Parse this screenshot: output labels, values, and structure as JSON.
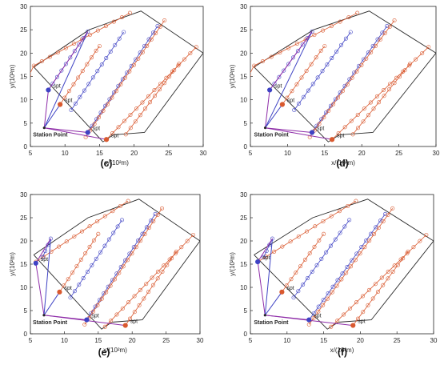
{
  "chart_data": [
    {
      "type": "line",
      "label": "(c)",
      "xlabel": "x/(10²m)",
      "ylabel": "y/(10²m)",
      "xlim": [
        5,
        30
      ],
      "ylim": [
        0,
        30
      ],
      "xticks": [
        "5",
        "10",
        "15",
        "20",
        "25",
        "30"
      ],
      "yticks": [
        "0",
        "5",
        "10",
        "15",
        "20",
        "25",
        "30"
      ],
      "grid": false,
      "station_label": "Station Point",
      "station": [
        7.0,
        4.0
      ],
      "boundary": [
        [
          5.5,
          17.0
        ],
        [
          13.5,
          25.0
        ],
        [
          21.0,
          29.0
        ],
        [
          30.0,
          20.0
        ],
        [
          21.5,
          3.0
        ],
        [
          17.0,
          2.5
        ],
        [
          15.5,
          1.0
        ],
        [
          5.5,
          17.0
        ]
      ],
      "strip_colors": [
        "#d9592f",
        "#3f43c4"
      ],
      "strips": [
        {
          "color": "#d9592f",
          "points": [
            [
              4.8,
              15.2
            ],
            [
              5.5,
              17.3
            ],
            [
              19.4,
              28.6
            ]
          ]
        },
        {
          "color": "#3f43c4",
          "points": [
            [
              7.6,
              12.1
            ],
            [
              13.3,
              24.6
            ]
          ]
        },
        {
          "color": "#d9592f",
          "points": [
            [
              9.3,
              9.0
            ],
            [
              14.5,
              20.5
            ],
            [
              15.0,
              21.5
            ]
          ]
        },
        {
          "color": "#3f43c4",
          "points": [
            [
              10.9,
              7.8
            ],
            [
              18.5,
              24.5
            ]
          ]
        },
        {
          "color": "#3f43c4",
          "points": [
            [
              13.3,
              3.0
            ],
            [
              23.4,
              25.8
            ]
          ]
        },
        {
          "color": "#d9592f",
          "points": [
            [
              13.0,
              2.0
            ],
            [
              18.7,
              14.7
            ],
            [
              24.4,
              27.0
            ]
          ]
        },
        {
          "color": "#d9592f",
          "points": [
            [
              16.0,
              1.5
            ],
            [
              29.0,
              21.3
            ]
          ]
        },
        {
          "color": "#d9592f",
          "points": [
            [
              18.8,
              2.6
            ],
            [
              26.5,
              17.7
            ]
          ]
        }
      ],
      "spt_points": [
        {
          "label": "spt",
          "x": 7.6,
          "y": 12.1,
          "color": "#3f43c4"
        },
        {
          "label": "spt",
          "x": 9.3,
          "y": 9.0,
          "color": "#d9592f"
        },
        {
          "label": "spt",
          "x": 13.3,
          "y": 3.0,
          "color": "#3f43c4"
        },
        {
          "label": "spt",
          "x": 16.0,
          "y": 1.5,
          "color": "#d9592f"
        }
      ],
      "paths": [
        {
          "color": "#8e2ca8",
          "points": [
            [
              7.0,
              4.0
            ],
            [
              13.3,
              3.0
            ]
          ]
        },
        {
          "color": "#8e2ca8",
          "points": [
            [
              7.0,
              4.0
            ],
            [
              16.0,
              1.5
            ]
          ]
        },
        {
          "color": "#8e2ca8",
          "points": [
            [
              7.0,
              4.0
            ],
            [
              7.6,
              12.1
            ]
          ]
        },
        {
          "color": "#3f43c4",
          "points": [
            [
              7.0,
              4.0
            ],
            [
              13.3,
              24.6
            ]
          ]
        },
        {
          "color": "#3f43c4",
          "points": [
            [
              7.0,
              4.0
            ],
            [
              9.3,
              9.0
            ]
          ]
        },
        {
          "color": "#8e2ca8",
          "points": [
            [
              7.6,
              12.1
            ],
            [
              13.3,
              24.6
            ]
          ]
        }
      ]
    },
    {
      "type": "line",
      "label": "(d)",
      "xlabel": "x/(10²m)",
      "ylabel": "y/(10²m)",
      "xlim": [
        5,
        30
      ],
      "ylim": [
        0,
        30
      ],
      "xticks": [
        "5",
        "10",
        "15",
        "20",
        "25",
        "30"
      ],
      "yticks": [
        "0",
        "5",
        "10",
        "15",
        "20",
        "25",
        "30"
      ],
      "grid": false,
      "station_label": "Station Point",
      "station": [
        7.0,
        4.0
      ],
      "boundary": [
        [
          5.5,
          17.0
        ],
        [
          13.5,
          25.0
        ],
        [
          21.0,
          29.0
        ],
        [
          30.0,
          20.0
        ],
        [
          21.5,
          3.0
        ],
        [
          17.0,
          2.5
        ],
        [
          15.5,
          1.0
        ],
        [
          5.5,
          17.0
        ]
      ],
      "strip_colors": [
        "#d9592f",
        "#3f43c4"
      ],
      "strips": [
        {
          "color": "#d9592f",
          "points": [
            [
              4.8,
              15.2
            ],
            [
              5.5,
              17.3
            ],
            [
              19.4,
              28.6
            ]
          ]
        },
        {
          "color": "#3f43c4",
          "points": [
            [
              7.6,
              12.1
            ],
            [
              13.3,
              24.6
            ]
          ]
        },
        {
          "color": "#d9592f",
          "points": [
            [
              9.3,
              9.0
            ],
            [
              14.5,
              20.5
            ],
            [
              15.0,
              21.5
            ]
          ]
        },
        {
          "color": "#3f43c4",
          "points": [
            [
              10.9,
              7.8
            ],
            [
              18.5,
              24.5
            ]
          ]
        },
        {
          "color": "#3f43c4",
          "points": [
            [
              13.3,
              3.0
            ],
            [
              23.4,
              25.8
            ]
          ]
        },
        {
          "color": "#d9592f",
          "points": [
            [
              13.0,
              2.0
            ],
            [
              18.7,
              14.7
            ],
            [
              24.4,
              27.0
            ]
          ]
        },
        {
          "color": "#d9592f",
          "points": [
            [
              16.0,
              1.5
            ],
            [
              29.0,
              21.3
            ]
          ]
        },
        {
          "color": "#d9592f",
          "points": [
            [
              18.8,
              2.6
            ],
            [
              26.5,
              17.7
            ]
          ]
        }
      ],
      "spt_points": [
        {
          "label": "spt",
          "x": 7.6,
          "y": 12.1,
          "color": "#3f43c4"
        },
        {
          "label": "spt",
          "x": 9.3,
          "y": 9.0,
          "color": "#d9592f"
        },
        {
          "label": "spt",
          "x": 13.3,
          "y": 3.0,
          "color": "#3f43c4"
        },
        {
          "label": "spt",
          "x": 16.0,
          "y": 1.5,
          "color": "#d9592f"
        }
      ],
      "paths": [
        {
          "color": "#8e2ca8",
          "points": [
            [
              7.0,
              4.0
            ],
            [
              13.3,
              3.0
            ]
          ]
        },
        {
          "color": "#8e2ca8",
          "points": [
            [
              7.0,
              4.0
            ],
            [
              16.0,
              1.5
            ]
          ]
        },
        {
          "color": "#8e2ca8",
          "points": [
            [
              7.0,
              4.0
            ],
            [
              7.6,
              12.1
            ]
          ]
        },
        {
          "color": "#3f43c4",
          "points": [
            [
              7.0,
              4.0
            ],
            [
              13.3,
              24.6
            ]
          ]
        },
        {
          "color": "#3f43c4",
          "points": [
            [
              7.0,
              4.0
            ],
            [
              9.3,
              9.0
            ]
          ]
        },
        {
          "color": "#8e2ca8",
          "points": [
            [
              7.6,
              12.1
            ],
            [
              13.3,
              24.6
            ]
          ]
        }
      ]
    },
    {
      "type": "line",
      "label": "(e)",
      "xlabel": "x/(10²m)",
      "ylabel": "y/(10²m)",
      "xlim": [
        5,
        30
      ],
      "ylim": [
        0,
        30
      ],
      "xticks": [
        "5",
        "10",
        "15",
        "20",
        "25",
        "30"
      ],
      "yticks": [
        "0",
        "5",
        "10",
        "15",
        "20",
        "25",
        "30"
      ],
      "grid": false,
      "station_label": "Station Point",
      "station": [
        7.0,
        4.0
      ],
      "boundary": [
        [
          5.5,
          17.0
        ],
        [
          13.5,
          25.0
        ],
        [
          21.0,
          29.0
        ],
        [
          30.0,
          20.0
        ],
        [
          21.5,
          3.0
        ],
        [
          17.0,
          2.5
        ],
        [
          15.5,
          1.0
        ],
        [
          5.5,
          17.0
        ]
      ],
      "strip_colors": [
        "#d9592f",
        "#3f43c4"
      ],
      "strips": [
        {
          "color": "#d9592f",
          "points": [
            [
              5.8,
              15.5
            ],
            [
              19.4,
              28.6
            ]
          ]
        },
        {
          "color": "#3f43c4",
          "points": [
            [
              8.0,
              20.5
            ],
            [
              6.8,
              16.5
            ]
          ]
        },
        {
          "color": "#d9592f",
          "points": [
            [
              9.3,
              9.0
            ],
            [
              15.0,
              21.5
            ]
          ]
        },
        {
          "color": "#3f43c4",
          "points": [
            [
              10.9,
              7.8
            ],
            [
              18.5,
              24.5
            ]
          ]
        },
        {
          "color": "#3f43c4",
          "points": [
            [
              13.3,
              3.0
            ],
            [
              23.4,
              25.8
            ]
          ]
        },
        {
          "color": "#d9592f",
          "points": [
            [
              13.0,
              2.0
            ],
            [
              24.4,
              27.0
            ]
          ]
        },
        {
          "color": "#d9592f",
          "points": [
            [
              16.0,
              1.5
            ],
            [
              29.0,
              21.3
            ]
          ]
        },
        {
          "color": "#d9592f",
          "points": [
            [
              19.0,
              1.8
            ],
            [
              26.5,
              17.7
            ]
          ]
        }
      ],
      "spt_points": [
        {
          "label": "spt",
          "x": 5.8,
          "y": 15.2,
          "color": "#3f43c4"
        },
        {
          "label": "spt",
          "x": 9.3,
          "y": 9.0,
          "color": "#d9592f"
        },
        {
          "label": "spt",
          "x": 13.3,
          "y": 3.0,
          "color": "#3f43c4"
        },
        {
          "label": "spt",
          "x": 19.0,
          "y": 1.8,
          "color": "#d9592f"
        }
      ],
      "paths": [
        {
          "color": "#8e2ca8",
          "points": [
            [
              7.0,
              4.0
            ],
            [
              13.3,
              3.0
            ]
          ]
        },
        {
          "color": "#8e2ca8",
          "points": [
            [
              7.0,
              4.0
            ],
            [
              19.0,
              1.8
            ]
          ]
        },
        {
          "color": "#8e2ca8",
          "points": [
            [
              7.0,
              4.0
            ],
            [
              5.8,
              15.2
            ]
          ]
        },
        {
          "color": "#3f43c4",
          "points": [
            [
              7.0,
              4.0
            ],
            [
              8.0,
              20.5
            ]
          ]
        },
        {
          "color": "#3f43c4",
          "points": [
            [
              7.0,
              4.0
            ],
            [
              9.3,
              9.0
            ]
          ]
        },
        {
          "color": "#8e2ca8",
          "points": [
            [
              5.8,
              15.2
            ],
            [
              8.0,
              20.5
            ]
          ]
        }
      ]
    },
    {
      "type": "line",
      "label": "(f)",
      "xlabel": "x/(10²m)",
      "ylabel": "y/(10²m)",
      "xlim": [
        5,
        30
      ],
      "ylim": [
        0,
        30
      ],
      "xticks": [
        "5",
        "10",
        "15",
        "20",
        "25",
        "30"
      ],
      "yticks": [
        "0",
        "5",
        "10",
        "15",
        "20",
        "25",
        "30"
      ],
      "grid": false,
      "station_label": "Station Point",
      "station": [
        7.0,
        4.0
      ],
      "boundary": [
        [
          5.5,
          17.0
        ],
        [
          13.5,
          25.0
        ],
        [
          21.0,
          29.0
        ],
        [
          30.0,
          20.0
        ],
        [
          21.5,
          3.0
        ],
        [
          17.0,
          2.5
        ],
        [
          15.5,
          1.0
        ],
        [
          5.5,
          17.0
        ]
      ],
      "strip_colors": [
        "#d9592f",
        "#3f43c4"
      ],
      "strips": [
        {
          "color": "#d9592f",
          "points": [
            [
              6.0,
              15.5
            ],
            [
              19.4,
              28.6
            ]
          ]
        },
        {
          "color": "#3f43c4",
          "points": [
            [
              8.0,
              20.5
            ],
            [
              6.8,
              16.5
            ]
          ]
        },
        {
          "color": "#d9592f",
          "points": [
            [
              9.3,
              9.0
            ],
            [
              15.0,
              21.5
            ]
          ]
        },
        {
          "color": "#3f43c4",
          "points": [
            [
              10.9,
              7.8
            ],
            [
              18.5,
              24.5
            ]
          ]
        },
        {
          "color": "#3f43c4",
          "points": [
            [
              13.0,
              3.0
            ],
            [
              23.4,
              25.8
            ]
          ]
        },
        {
          "color": "#d9592f",
          "points": [
            [
              13.0,
              2.0
            ],
            [
              24.4,
              27.0
            ]
          ]
        },
        {
          "color": "#d9592f",
          "points": [
            [
              16.0,
              1.5
            ],
            [
              29.0,
              21.3
            ]
          ]
        },
        {
          "color": "#d9592f",
          "points": [
            [
              19.0,
              1.8
            ],
            [
              26.5,
              17.7
            ]
          ]
        }
      ],
      "spt_points": [
        {
          "label": "spt",
          "x": 6.0,
          "y": 15.5,
          "color": "#3f43c4"
        },
        {
          "label": "spt",
          "x": 9.3,
          "y": 9.0,
          "color": "#d9592f"
        },
        {
          "label": "spt",
          "x": 13.0,
          "y": 3.0,
          "color": "#3f43c4"
        },
        {
          "label": "spt",
          "x": 19.0,
          "y": 1.8,
          "color": "#d9592f"
        }
      ],
      "paths": [
        {
          "color": "#8e2ca8",
          "points": [
            [
              7.0,
              4.0
            ],
            [
              13.0,
              3.0
            ]
          ]
        },
        {
          "color": "#8e2ca8",
          "points": [
            [
              7.0,
              4.0
            ],
            [
              19.0,
              1.8
            ]
          ]
        },
        {
          "color": "#8e2ca8",
          "points": [
            [
              7.0,
              4.0
            ],
            [
              6.0,
              15.5
            ]
          ]
        },
        {
          "color": "#3f43c4",
          "points": [
            [
              7.0,
              4.0
            ],
            [
              8.0,
              20.5
            ]
          ]
        },
        {
          "color": "#3f43c4",
          "points": [
            [
              7.0,
              4.0
            ],
            [
              9.3,
              9.0
            ]
          ]
        },
        {
          "color": "#8e2ca8",
          "points": [
            [
              6.0,
              15.5
            ],
            [
              8.0,
              20.5
            ]
          ]
        }
      ]
    }
  ]
}
